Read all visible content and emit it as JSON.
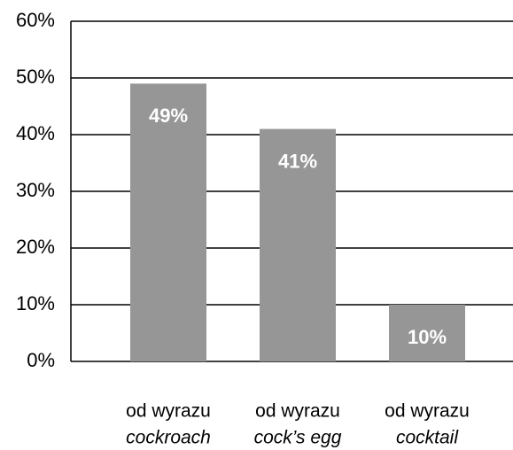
{
  "chart_data": {
    "type": "bar",
    "categories": [
      [
        "od wyrazu",
        "cockroach"
      ],
      [
        "od wyrazu",
        "cock’s egg"
      ],
      [
        "od wyrazu",
        "cocktail"
      ]
    ],
    "values": [
      49,
      41,
      10
    ],
    "value_labels": [
      "49%",
      "41%",
      "10%"
    ],
    "color": "#969696",
    "ylim": [
      0,
      60
    ],
    "yticks": [
      {
        "value": 0,
        "label": "0%"
      },
      {
        "value": 10,
        "label": "10%"
      },
      {
        "value": 20,
        "label": "20%"
      },
      {
        "value": 30,
        "label": "30%"
      },
      {
        "value": 40,
        "label": "40%"
      },
      {
        "value": 50,
        "label": "50%"
      },
      {
        "value": 60,
        "label": "60%"
      }
    ],
    "grid": true
  }
}
